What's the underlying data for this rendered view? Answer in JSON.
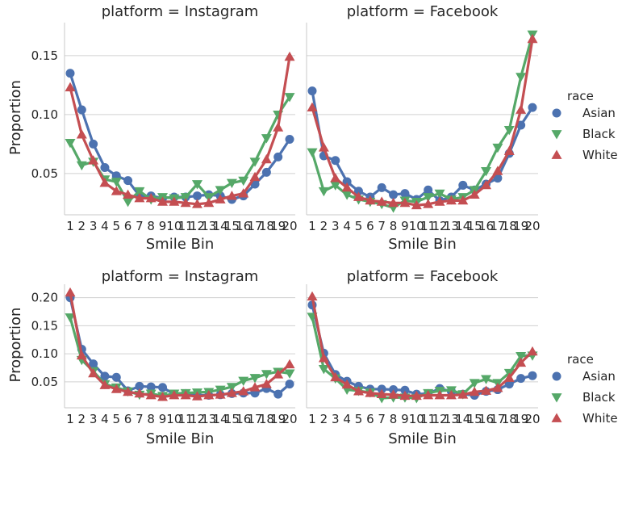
{
  "chart_data": [
    {
      "type": "line",
      "title": "platform = Instagram",
      "xlabel": "Smile Bin",
      "ylabel": "Proportion",
      "x": [
        1,
        2,
        3,
        4,
        5,
        6,
        7,
        8,
        9,
        10,
        11,
        12,
        13,
        14,
        15,
        16,
        17,
        18,
        19,
        20
      ],
      "yticks": [
        0.05,
        0.1,
        0.15
      ],
      "ytick_labels": [
        "0.05",
        "0.10",
        "0.15"
      ],
      "ylim": [
        0.017,
        0.178
      ],
      "series": [
        {
          "name": "Asian",
          "values": [
            0.135,
            0.104,
            0.075,
            0.055,
            0.048,
            0.044,
            0.031,
            0.031,
            0.029,
            0.03,
            0.03,
            0.031,
            0.032,
            0.031,
            0.028,
            0.031,
            0.041,
            0.051,
            0.064,
            0.079
          ]
        },
        {
          "name": "Black",
          "values": [
            0.076,
            0.057,
            0.06,
            0.045,
            0.043,
            0.026,
            0.035,
            0.028,
            0.03,
            0.029,
            0.03,
            0.041,
            0.03,
            0.036,
            0.042,
            0.044,
            0.06,
            0.08,
            0.1,
            0.115
          ]
        },
        {
          "name": "White",
          "values": [
            0.123,
            0.083,
            0.061,
            0.042,
            0.035,
            0.032,
            0.029,
            0.029,
            0.026,
            0.026,
            0.025,
            0.024,
            0.025,
            0.028,
            0.031,
            0.033,
            0.047,
            0.062,
            0.089,
            0.149
          ]
        }
      ]
    },
    {
      "type": "line",
      "title": "platform = Facebook",
      "xlabel": "Smile Bin",
      "ylabel": "",
      "x": [
        1,
        2,
        3,
        4,
        5,
        6,
        7,
        8,
        9,
        10,
        11,
        12,
        13,
        14,
        15,
        16,
        17,
        18,
        19,
        20
      ],
      "yticks": [
        0.05,
        0.1,
        0.15
      ],
      "ytick_labels": [
        "",
        "",
        ""
      ],
      "ylim": [
        0.017,
        0.178
      ],
      "series": [
        {
          "name": "Asian",
          "values": [
            0.12,
            0.065,
            0.061,
            0.043,
            0.035,
            0.03,
            0.038,
            0.032,
            0.033,
            0.028,
            0.036,
            0.027,
            0.03,
            0.04,
            0.036,
            0.041,
            0.046,
            0.067,
            0.091,
            0.106
          ]
        },
        {
          "name": "Black",
          "values": [
            0.068,
            0.035,
            0.04,
            0.032,
            0.028,
            0.026,
            0.024,
            0.021,
            0.027,
            0.026,
            0.03,
            0.033,
            0.028,
            0.03,
            0.036,
            0.052,
            0.072,
            0.087,
            0.132,
            0.168
          ]
        },
        {
          "name": "White",
          "values": [
            0.106,
            0.072,
            0.046,
            0.038,
            0.03,
            0.027,
            0.026,
            0.025,
            0.025,
            0.023,
            0.024,
            0.026,
            0.027,
            0.027,
            0.032,
            0.04,
            0.052,
            0.069,
            0.104,
            0.164
          ]
        }
      ]
    },
    {
      "type": "line",
      "title": "platform = Instagram",
      "xlabel": "Smile Bin",
      "ylabel": "Proportion",
      "x": [
        1,
        2,
        3,
        4,
        5,
        6,
        7,
        8,
        9,
        10,
        11,
        12,
        13,
        14,
        15,
        16,
        17,
        18,
        19,
        20
      ],
      "yticks": [
        0.05,
        0.1,
        0.15,
        0.2
      ],
      "ytick_labels": [
        "0.05",
        "0.10",
        "0.15",
        "0.20"
      ],
      "ylim": [
        0.008,
        0.224
      ],
      "series": [
        {
          "name": "Asian",
          "values": [
            0.2,
            0.108,
            0.082,
            0.06,
            0.058,
            0.034,
            0.042,
            0.041,
            0.04,
            0.028,
            0.029,
            0.026,
            0.026,
            0.027,
            0.029,
            0.03,
            0.03,
            0.038,
            0.028,
            0.046
          ]
        },
        {
          "name": "Black",
          "values": [
            0.165,
            0.089,
            0.069,
            0.046,
            0.04,
            0.033,
            0.027,
            0.029,
            0.025,
            0.029,
            0.03,
            0.031,
            0.032,
            0.036,
            0.041,
            0.052,
            0.057,
            0.064,
            0.068,
            0.065
          ]
        },
        {
          "name": "White",
          "values": [
            0.209,
            0.097,
            0.065,
            0.044,
            0.037,
            0.032,
            0.029,
            0.026,
            0.023,
            0.026,
            0.026,
            0.024,
            0.026,
            0.027,
            0.03,
            0.033,
            0.04,
            0.046,
            0.063,
            0.081
          ]
        }
      ]
    },
    {
      "type": "line",
      "title": "platform = Facebook",
      "xlabel": "Smile Bin",
      "ylabel": "",
      "x": [
        1,
        2,
        3,
        4,
        5,
        6,
        7,
        8,
        9,
        10,
        11,
        12,
        13,
        14,
        15,
        16,
        17,
        18,
        19,
        20
      ],
      "yticks": [
        0.05,
        0.1,
        0.15,
        0.2
      ],
      "ytick_labels": [
        "",
        "",
        "",
        ""
      ],
      "ylim": [
        0.008,
        0.224
      ],
      "series": [
        {
          "name": "Asian",
          "values": [
            0.187,
            0.101,
            0.063,
            0.051,
            0.042,
            0.037,
            0.037,
            0.036,
            0.035,
            0.028,
            0.029,
            0.038,
            0.033,
            0.028,
            0.026,
            0.033,
            0.036,
            0.046,
            0.056,
            0.061
          ]
        },
        {
          "name": "Black",
          "values": [
            0.166,
            0.073,
            0.056,
            0.036,
            0.034,
            0.031,
            0.021,
            0.022,
            0.022,
            0.021,
            0.03,
            0.034,
            0.035,
            0.028,
            0.048,
            0.055,
            0.048,
            0.066,
            0.096,
            0.097
          ]
        },
        {
          "name": "White",
          "values": [
            0.202,
            0.092,
            0.058,
            0.045,
            0.033,
            0.03,
            0.028,
            0.027,
            0.025,
            0.025,
            0.026,
            0.026,
            0.026,
            0.027,
            0.032,
            0.034,
            0.039,
            0.057,
            0.084,
            0.104
          ]
        }
      ]
    }
  ],
  "legend": {
    "title": "race",
    "entries": [
      {
        "label": "Asian",
        "color": "#4c72b0",
        "marker": "circle"
      },
      {
        "label": "Black",
        "color": "#55a868",
        "marker": "triangle-down"
      },
      {
        "label": "White",
        "color": "#c44e52",
        "marker": "triangle-up"
      }
    ]
  }
}
